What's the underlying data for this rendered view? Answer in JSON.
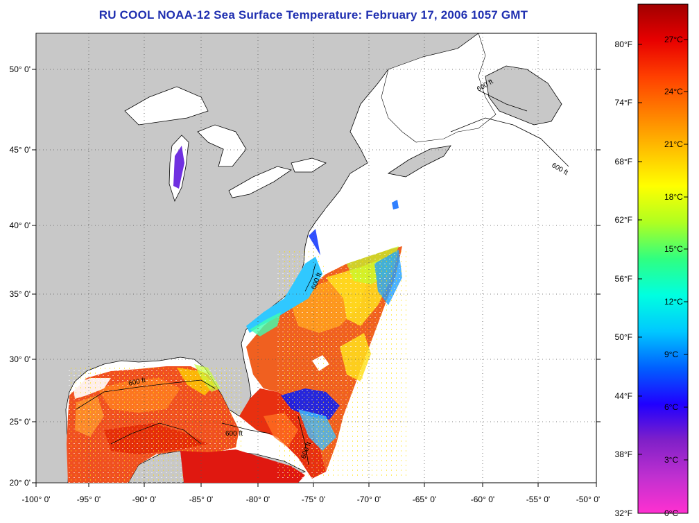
{
  "title": "RU COOL  NOAA-12  Sea Surface Temperature:  February 17, 2006 1057 GMT",
  "map": {
    "x_labels": [
      "-100° 0'",
      "-95° 0'",
      "-90° 0'",
      "-85° 0'",
      "-80° 0'",
      "-75° 0'",
      "-70° 0'",
      "-65° 0'",
      "-60° 0'",
      "-55° 0'",
      "-50° 0'"
    ],
    "y_labels": [
      "50° 0'",
      "45° 0'",
      "40° 0'",
      "35° 0'",
      "30° 0'",
      "25° 0'",
      "20° 0'"
    ],
    "contour_labels": [
      "600 ft",
      "600 ft",
      "600 ft",
      "600 ft",
      "600 ft",
      "600 ft"
    ],
    "colors": {
      "land": "#c8c8c8",
      "ocean_no_data": "#ffffff",
      "coastline": "#000000"
    }
  },
  "colorbar": {
    "fahrenheit_labels": [
      "80°F",
      "74°F",
      "68°F",
      "62°F",
      "56°F",
      "50°F",
      "44°F",
      "38°F",
      "32°F"
    ],
    "celsius_labels": [
      "27°C",
      "24°C",
      "21°C",
      "18°C",
      "15°C",
      "12°C",
      "9°C",
      "6°C",
      "3°C",
      "0°C"
    ],
    "color_stops": [
      "#ff30d0",
      "#c030d0",
      "#8020c8",
      "#2000ff",
      "#0060ff",
      "#00c8ff",
      "#00ffe0",
      "#30ff80",
      "#b0ff20",
      "#ffff00",
      "#ffc000",
      "#ff8000",
      "#ff4000",
      "#e80000",
      "#a00000"
    ]
  }
}
